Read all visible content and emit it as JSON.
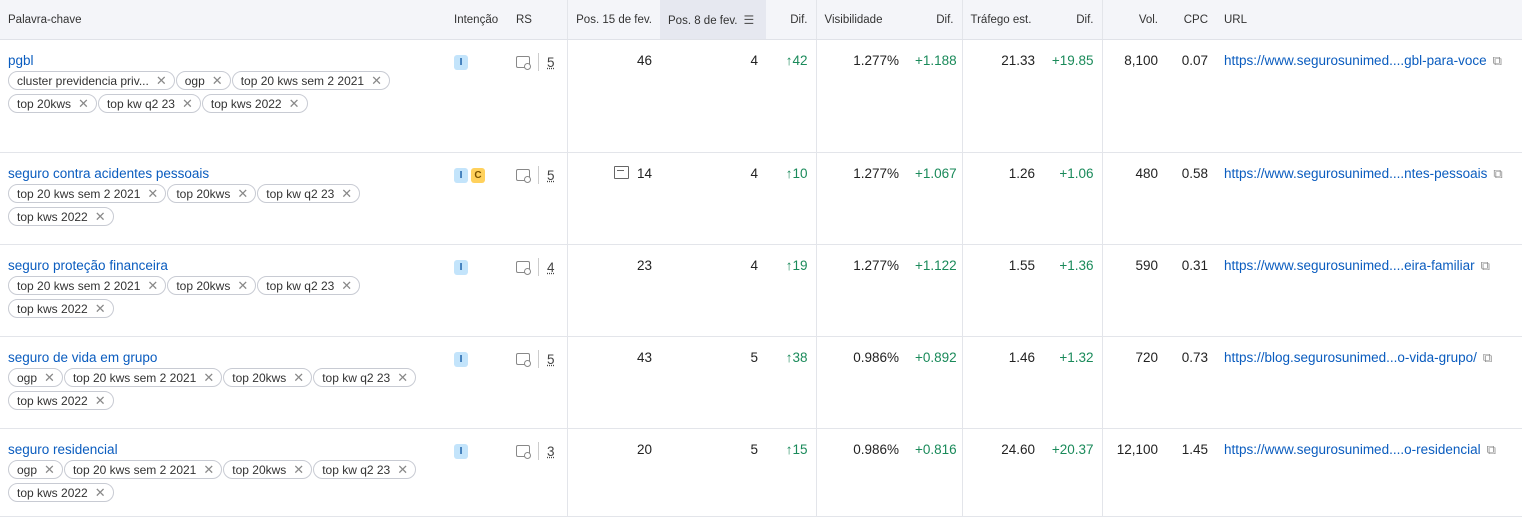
{
  "headers": {
    "keyword": "Palavra-chave",
    "intent": "Intenção",
    "rs": "RS",
    "pos1": "Pos. 15 de fev.",
    "pos2": "Pos. 8 de fev.",
    "dif1": "Dif.",
    "visibility": "Visibilidade",
    "dif2": "Dif.",
    "traffic": "Tráfego est.",
    "dif3": "Dif.",
    "vol": "Vol.",
    "cpc": "CPC",
    "url": "URL"
  },
  "rows": [
    {
      "keyword": "pgbl",
      "tags": [
        "cluster previdencia priv...",
        "ogp",
        "top 20 kws sem 2 2021",
        "top 20kws",
        "top kw q2 23",
        "top kws 2022"
      ],
      "intents": [
        "I"
      ],
      "rs": "5",
      "pos1": "46",
      "pos2": "4",
      "dif1": "42",
      "visibility": "1.277%",
      "dif2": "+1.188",
      "traffic": "21.33",
      "dif3": "+19.85",
      "vol": "8,100",
      "cpc": "0.07",
      "url": "https://www.segurosunimed....gbl-para-voce"
    },
    {
      "keyword": "seguro contra acidentes pessoais",
      "tags": [
        "top 20 kws sem 2 2021",
        "top 20kws",
        "top kw q2 23",
        "top kws 2022"
      ],
      "intents": [
        "I",
        "C"
      ],
      "rs": "5",
      "pos1": "14",
      "pos2": "4",
      "dif1": "10",
      "visibility": "1.277%",
      "dif2": "+1.067",
      "traffic": "1.26",
      "dif3": "+1.06",
      "vol": "480",
      "cpc": "0.58",
      "url": "https://www.segurosunimed....ntes-pessoais"
    },
    {
      "keyword": "seguro proteção financeira",
      "tags": [
        "top 20 kws sem 2 2021",
        "top 20kws",
        "top kw q2 23",
        "top kws 2022"
      ],
      "intents": [
        "I"
      ],
      "rs": "4",
      "pos1": "23",
      "pos2": "4",
      "dif1": "19",
      "visibility": "1.277%",
      "dif2": "+1.122",
      "traffic": "1.55",
      "dif3": "+1.36",
      "vol": "590",
      "cpc": "0.31",
      "url": "https://www.segurosunimed....eira-familiar"
    },
    {
      "keyword": "seguro de vida em grupo",
      "tags": [
        "ogp",
        "top 20 kws sem 2 2021",
        "top 20kws",
        "top kw q2 23",
        "top kws 2022"
      ],
      "intents": [
        "I"
      ],
      "rs": "5",
      "pos1": "43",
      "pos2": "5",
      "dif1": "38",
      "visibility": "0.986%",
      "dif2": "+0.892",
      "traffic": "1.46",
      "dif3": "+1.32",
      "vol": "720",
      "cpc": "0.73",
      "url": "https://blog.segurosunimed...o-vida-grupo/"
    },
    {
      "keyword": "seguro residencial",
      "tags": [
        "ogp",
        "top 20 kws sem 2 2021",
        "top 20kws",
        "top kw q2 23",
        "top kws 2022"
      ],
      "intents": [
        "I"
      ],
      "rs": "3",
      "pos1": "20",
      "pos2": "5",
      "dif1": "15",
      "visibility": "0.986%",
      "dif2": "+0.816",
      "traffic": "24.60",
      "dif3": "+20.37",
      "vol": "12,100",
      "cpc": "1.45",
      "url": "https://www.segurosunimed....o-residencial"
    }
  ]
}
